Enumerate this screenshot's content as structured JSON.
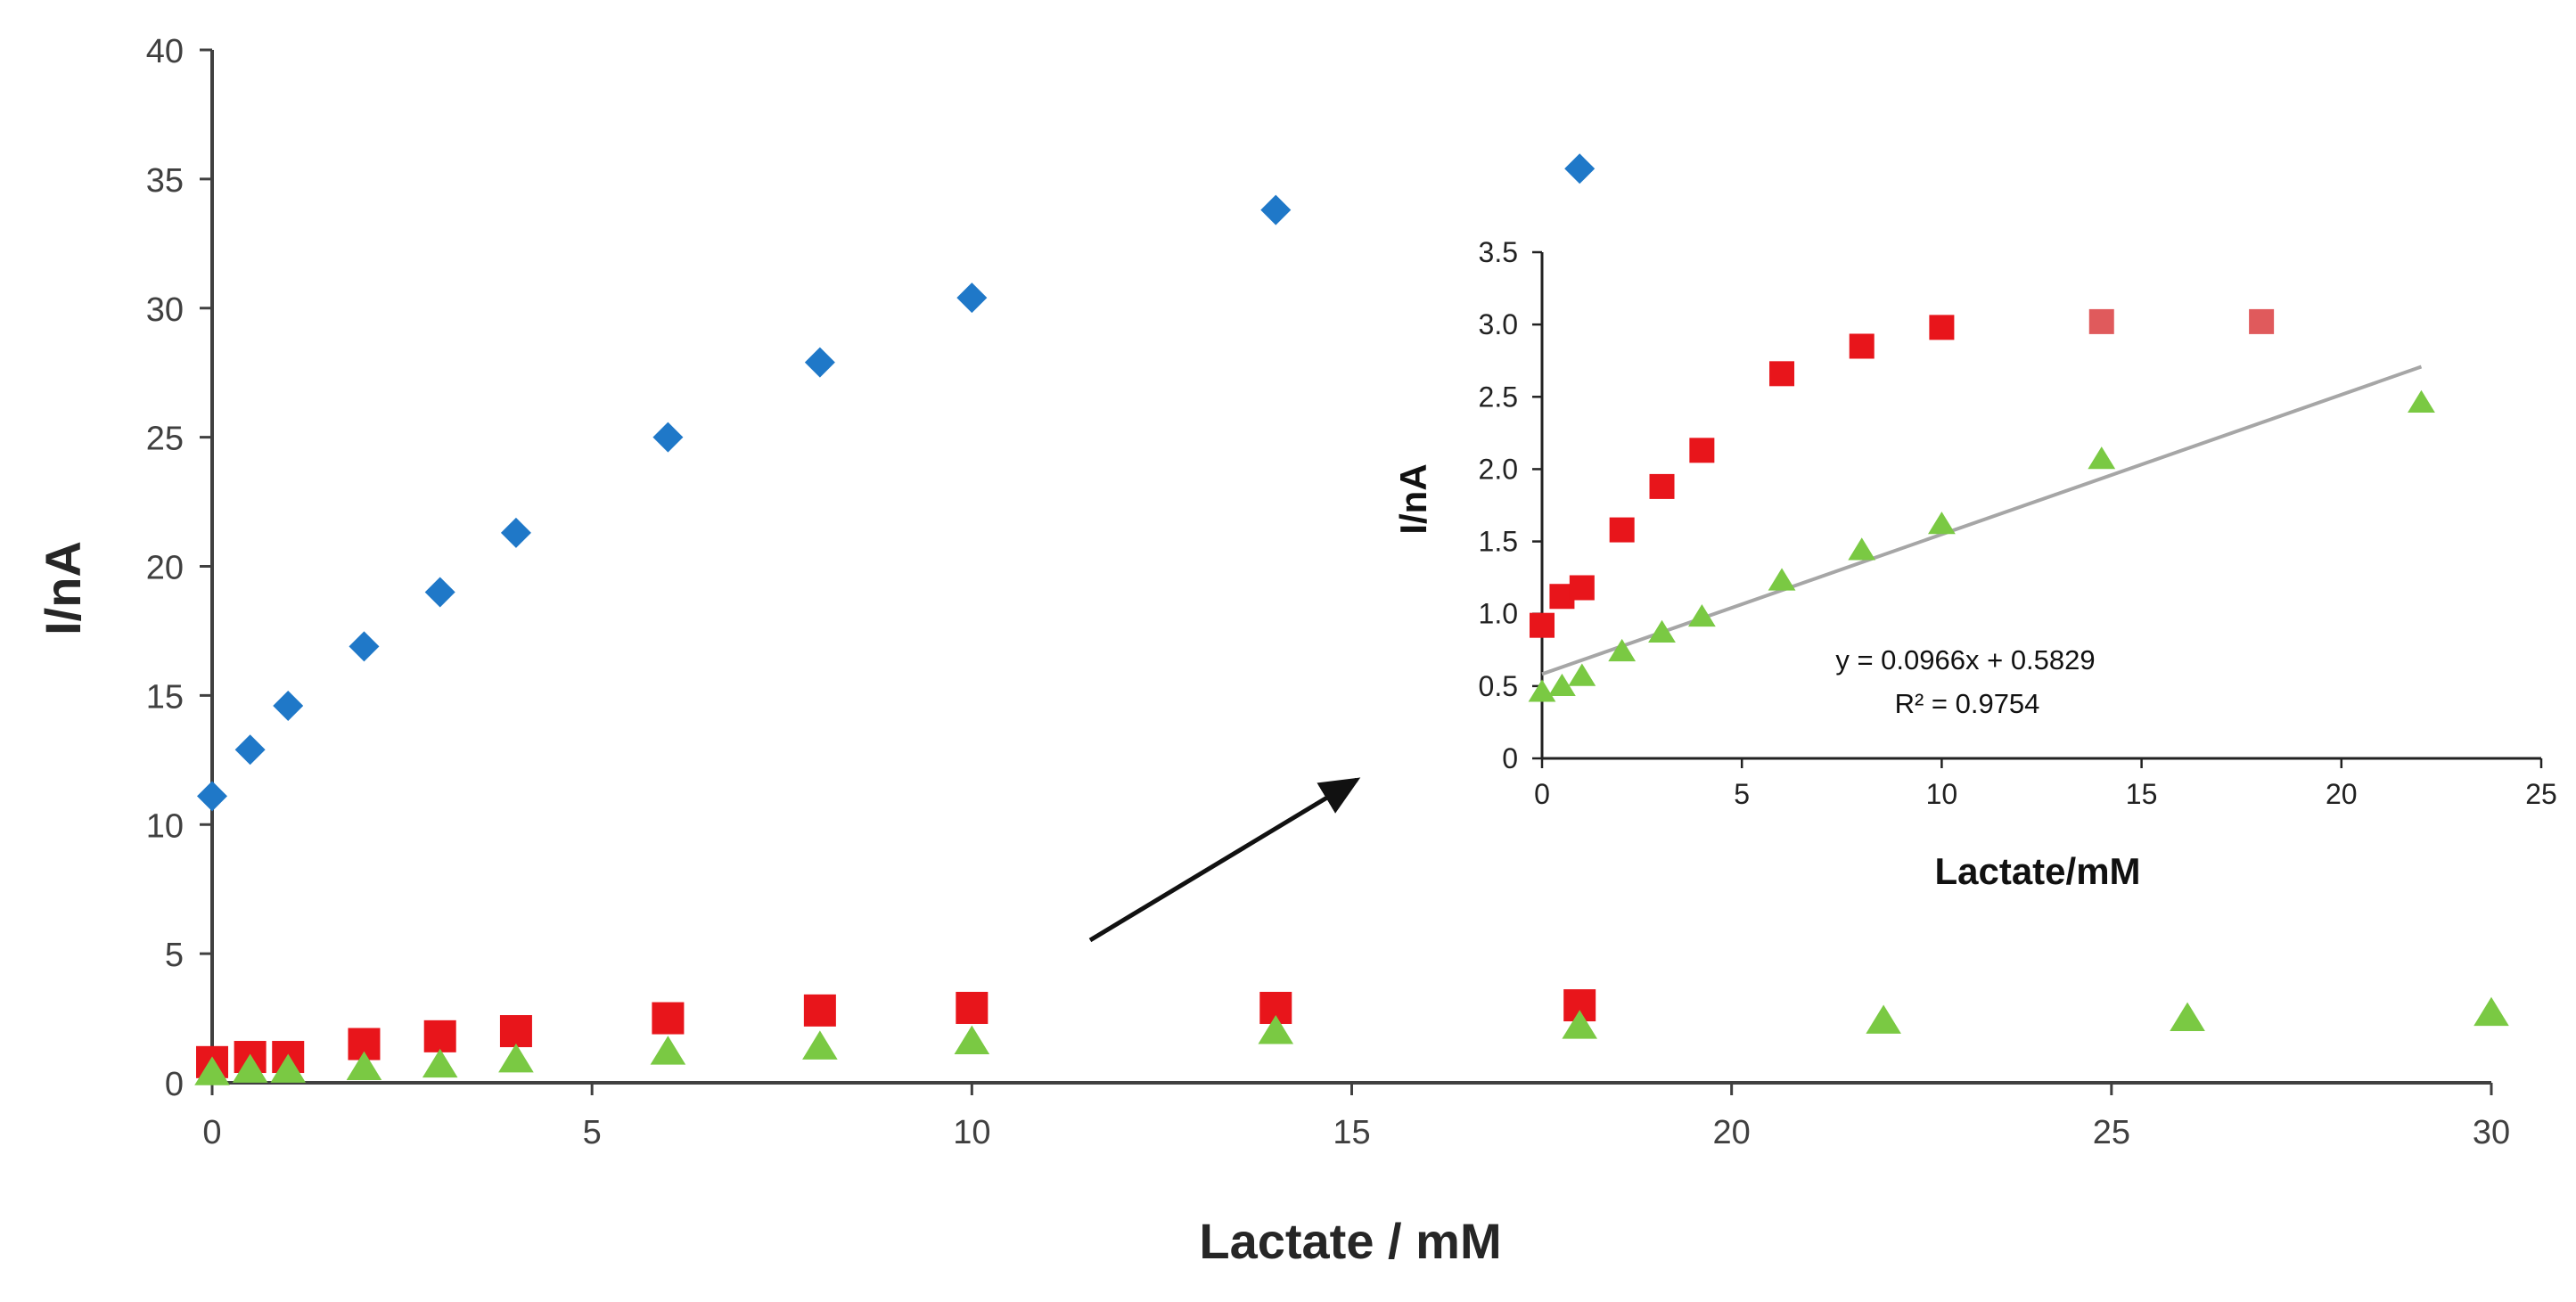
{
  "chart_data": [
    {
      "name": "main",
      "type": "scatter",
      "xlabel": "Lactate / mM",
      "ylabel": "I/nA",
      "xlim": [
        0,
        30
      ],
      "ylim": [
        0,
        40
      ],
      "xticks": [
        0,
        5,
        10,
        15,
        20,
        25,
        30
      ],
      "yticks": [
        0,
        5,
        10,
        15,
        20,
        25,
        30,
        35,
        40
      ],
      "x_tick_labels": [
        "0",
        "5",
        "10",
        "15",
        "20",
        "25",
        "30"
      ],
      "y_tick_labels": [
        "0",
        "5",
        "10",
        "15",
        "20",
        "25",
        "30",
        "35",
        "40"
      ],
      "grid": false,
      "series": [
        {
          "name": "blue",
          "marker": "diamond",
          "color": "#1f78c8",
          "x": [
            0,
            0.5,
            1,
            2,
            3,
            4,
            6,
            8,
            10,
            14,
            18
          ],
          "y": [
            11.1,
            12.9,
            14.6,
            16.9,
            19.0,
            21.3,
            25.0,
            27.9,
            30.4,
            33.8,
            35.4
          ]
        },
        {
          "name": "red",
          "marker": "square",
          "color": "#e8151b",
          "x": [
            0,
            0.5,
            1,
            2,
            3,
            4,
            6,
            8,
            10,
            14,
            18
          ],
          "y": [
            0.8,
            1.0,
            1.0,
            1.5,
            1.8,
            2.0,
            2.5,
            2.8,
            2.9,
            2.9,
            3.0
          ]
        },
        {
          "name": "green",
          "marker": "triangle",
          "color": "#7ac943",
          "x": [
            0,
            0.5,
            1,
            2,
            3,
            4,
            6,
            8,
            10,
            14,
            18,
            22,
            26,
            30
          ],
          "y": [
            0.4,
            0.5,
            0.5,
            0.6,
            0.7,
            0.9,
            1.2,
            1.4,
            1.6,
            2.0,
            2.2,
            2.4,
            2.5,
            2.7
          ]
        }
      ]
    },
    {
      "name": "inset",
      "type": "scatter",
      "xlabel": "Lactate/mM",
      "ylabel": "I/nA",
      "xlim": [
        0,
        25
      ],
      "ylim": [
        0,
        3.5
      ],
      "xticks": [
        0,
        5,
        10,
        15,
        20,
        25
      ],
      "yticks": [
        0,
        0.5,
        1.0,
        1.5,
        2.0,
        2.5,
        3.0,
        3.5
      ],
      "x_tick_labels": [
        "0",
        "5",
        "10",
        "15",
        "20",
        "25"
      ],
      "y_tick_labels": [
        "0",
        "0.5",
        "1.0",
        "1.5",
        "2.0",
        "2.5",
        "3.0",
        "3.5"
      ],
      "grid": false,
      "series": [
        {
          "name": "red",
          "marker": "square",
          "color": "#e8151b",
          "x": [
            0,
            0.5,
            1,
            2,
            3,
            4,
            6,
            8,
            10
          ],
          "y": [
            0.92,
            1.12,
            1.18,
            1.58,
            1.88,
            2.13,
            2.66,
            2.85,
            2.98
          ]
        },
        {
          "name": "red-faded",
          "marker": "square",
          "color": "#e05a5c",
          "x": [
            14,
            18
          ],
          "y": [
            3.02,
            3.02
          ]
        },
        {
          "name": "green",
          "marker": "triangle",
          "color": "#7ac943",
          "x": [
            0,
            0.5,
            1,
            2,
            3,
            4,
            6,
            8,
            10,
            14,
            22
          ],
          "y": [
            0.46,
            0.5,
            0.57,
            0.74,
            0.87,
            0.98,
            1.23,
            1.44,
            1.62,
            2.07,
            2.46
          ]
        }
      ],
      "trendline": {
        "slope": 0.0966,
        "intercept": 0.5829,
        "x_range": [
          0,
          22
        ],
        "color": "#a6a6a6"
      },
      "annotations": {
        "equation": "y = 0.0966x + 0.5829",
        "r_squared": "R² = 0.9754"
      }
    }
  ]
}
